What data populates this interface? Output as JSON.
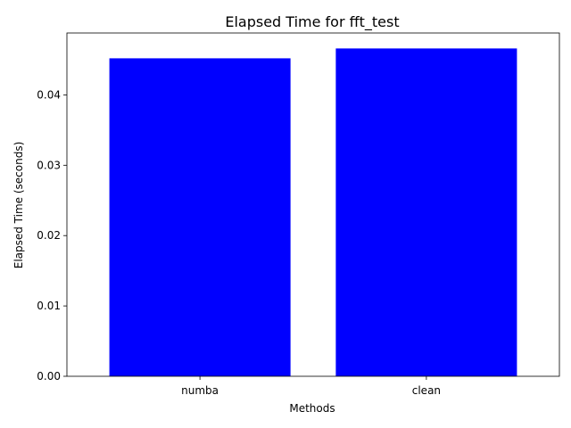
{
  "chart_data": {
    "type": "bar",
    "title": "Elapsed Time for fft_test",
    "xlabel": "Methods",
    "ylabel": "Elapsed Time (seconds)",
    "categories": [
      "numba",
      "clean"
    ],
    "values": [
      0.0452,
      0.0466
    ],
    "ylim": [
      0,
      0.0488
    ],
    "yticks": [
      0.0,
      0.01,
      0.02,
      0.03,
      0.04
    ],
    "ytick_labels": [
      "0.00",
      "0.01",
      "0.02",
      "0.03",
      "0.04"
    ],
    "bar_color": "#0000ff",
    "grid": false,
    "legend": "none"
  }
}
